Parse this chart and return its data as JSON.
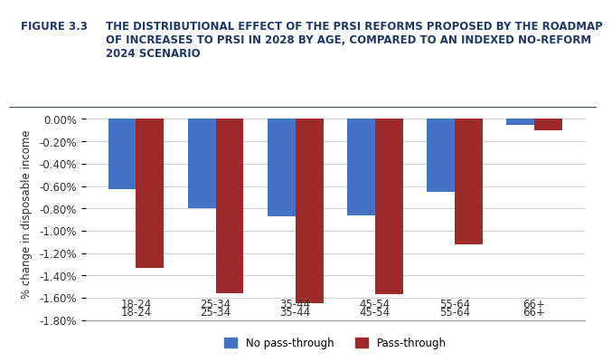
{
  "categories": [
    "18-24",
    "25-34",
    "35-44",
    "45-54",
    "55-64",
    "66+"
  ],
  "no_pass_through": [
    -0.63,
    -0.8,
    -0.87,
    -0.86,
    -0.65,
    -0.05
  ],
  "pass_through": [
    -1.33,
    -1.56,
    -1.65,
    -1.57,
    -1.12,
    -0.1
  ],
  "bar_color_blue": "#4472C4",
  "bar_color_red": "#9E2A2B",
  "figure_label": "FIGURE 3.3",
  "title_text": "THE DISTRIBUTIONAL EFFECT OF THE PRSI REFORMS PROPOSED BY THE ROADMAP\nOF INCREASES TO PRSI IN 2028 BY AGE, COMPARED TO AN INDEXED NO-REFORM\n2024 SCENARIO",
  "ylabel": "% change in disposable income",
  "ylim": [
    -1.8,
    0.1
  ],
  "yticks": [
    0.0,
    -0.2,
    -0.4,
    -0.6,
    -0.8,
    -1.0,
    -1.2,
    -1.4,
    -1.6,
    -1.8
  ],
  "ytick_labels": [
    "0.00%",
    "-0.20%",
    "-0.40%",
    "-0.60%",
    "-0.80%",
    "-1.00%",
    "-1.20%",
    "-1.40%",
    "-1.60%",
    "-1.80%"
  ],
  "legend_no_pass": "No pass-through",
  "legend_pass": "Pass-through",
  "background_color": "#FFFFFF",
  "header_bg_color": "#FFFFFF",
  "figure_label_color": "#1F3864",
  "title_color": "#1F3864",
  "bar_width": 0.35
}
